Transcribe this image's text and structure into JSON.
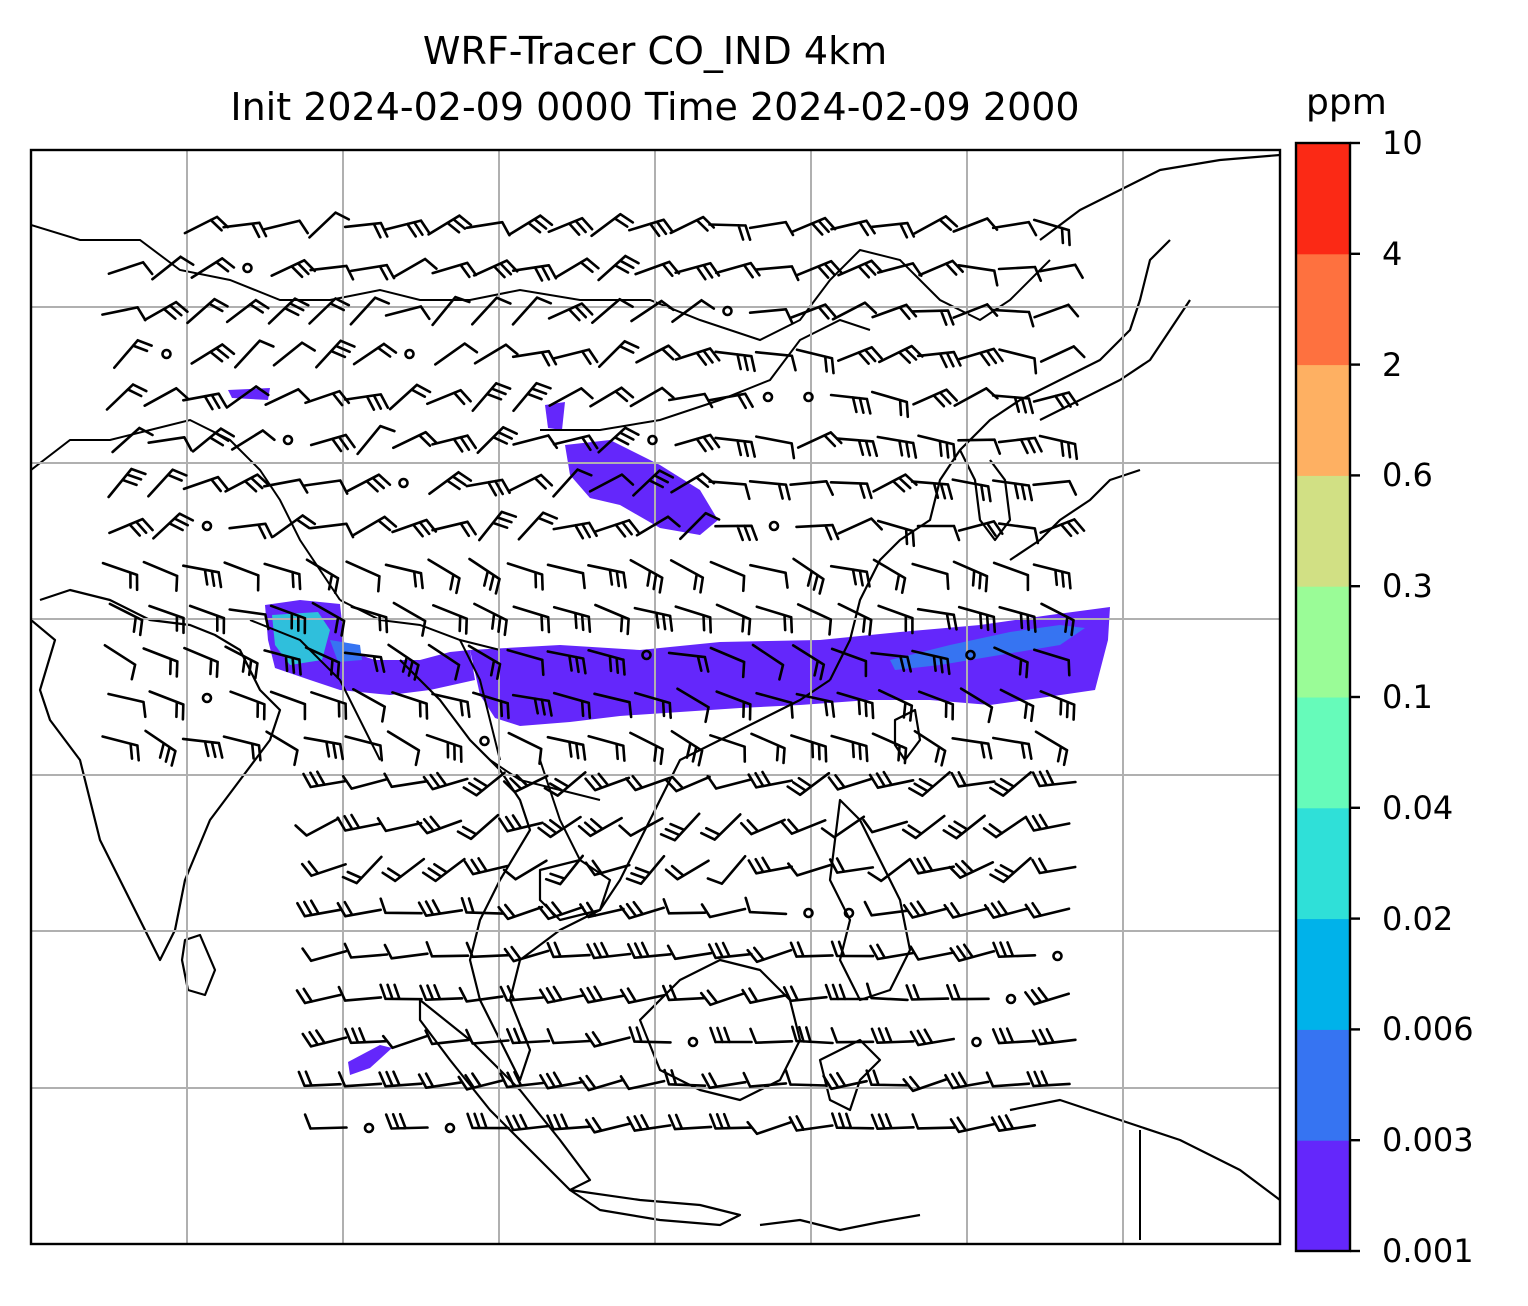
{
  "title": {
    "line1": "WRF-Tracer CO_IND 4km",
    "line2": "Init 2024-02-09 0000 Time 2024-02-09 2000"
  },
  "colorbar": {
    "units": "ppm",
    "tick_labels": [
      "0.001",
      "0.003",
      "0.006",
      "0.02",
      "0.04",
      "0.1",
      "0.3",
      "0.6",
      "2",
      "4",
      "10"
    ],
    "colors": [
      "#6427fb",
      "#3674f2",
      "#00b2ea",
      "#2fe0d8",
      "#66fbba",
      "#9afc97",
      "#d1e084",
      "#feb062",
      "#fe713f",
      "#fb2915"
    ]
  },
  "plume_colors": {
    "main": "#6427fb",
    "mid": "#3674f2",
    "core": "#2fbfdc"
  },
  "gridline_color": "#b0b0b0",
  "coastline_color": "#000000"
}
